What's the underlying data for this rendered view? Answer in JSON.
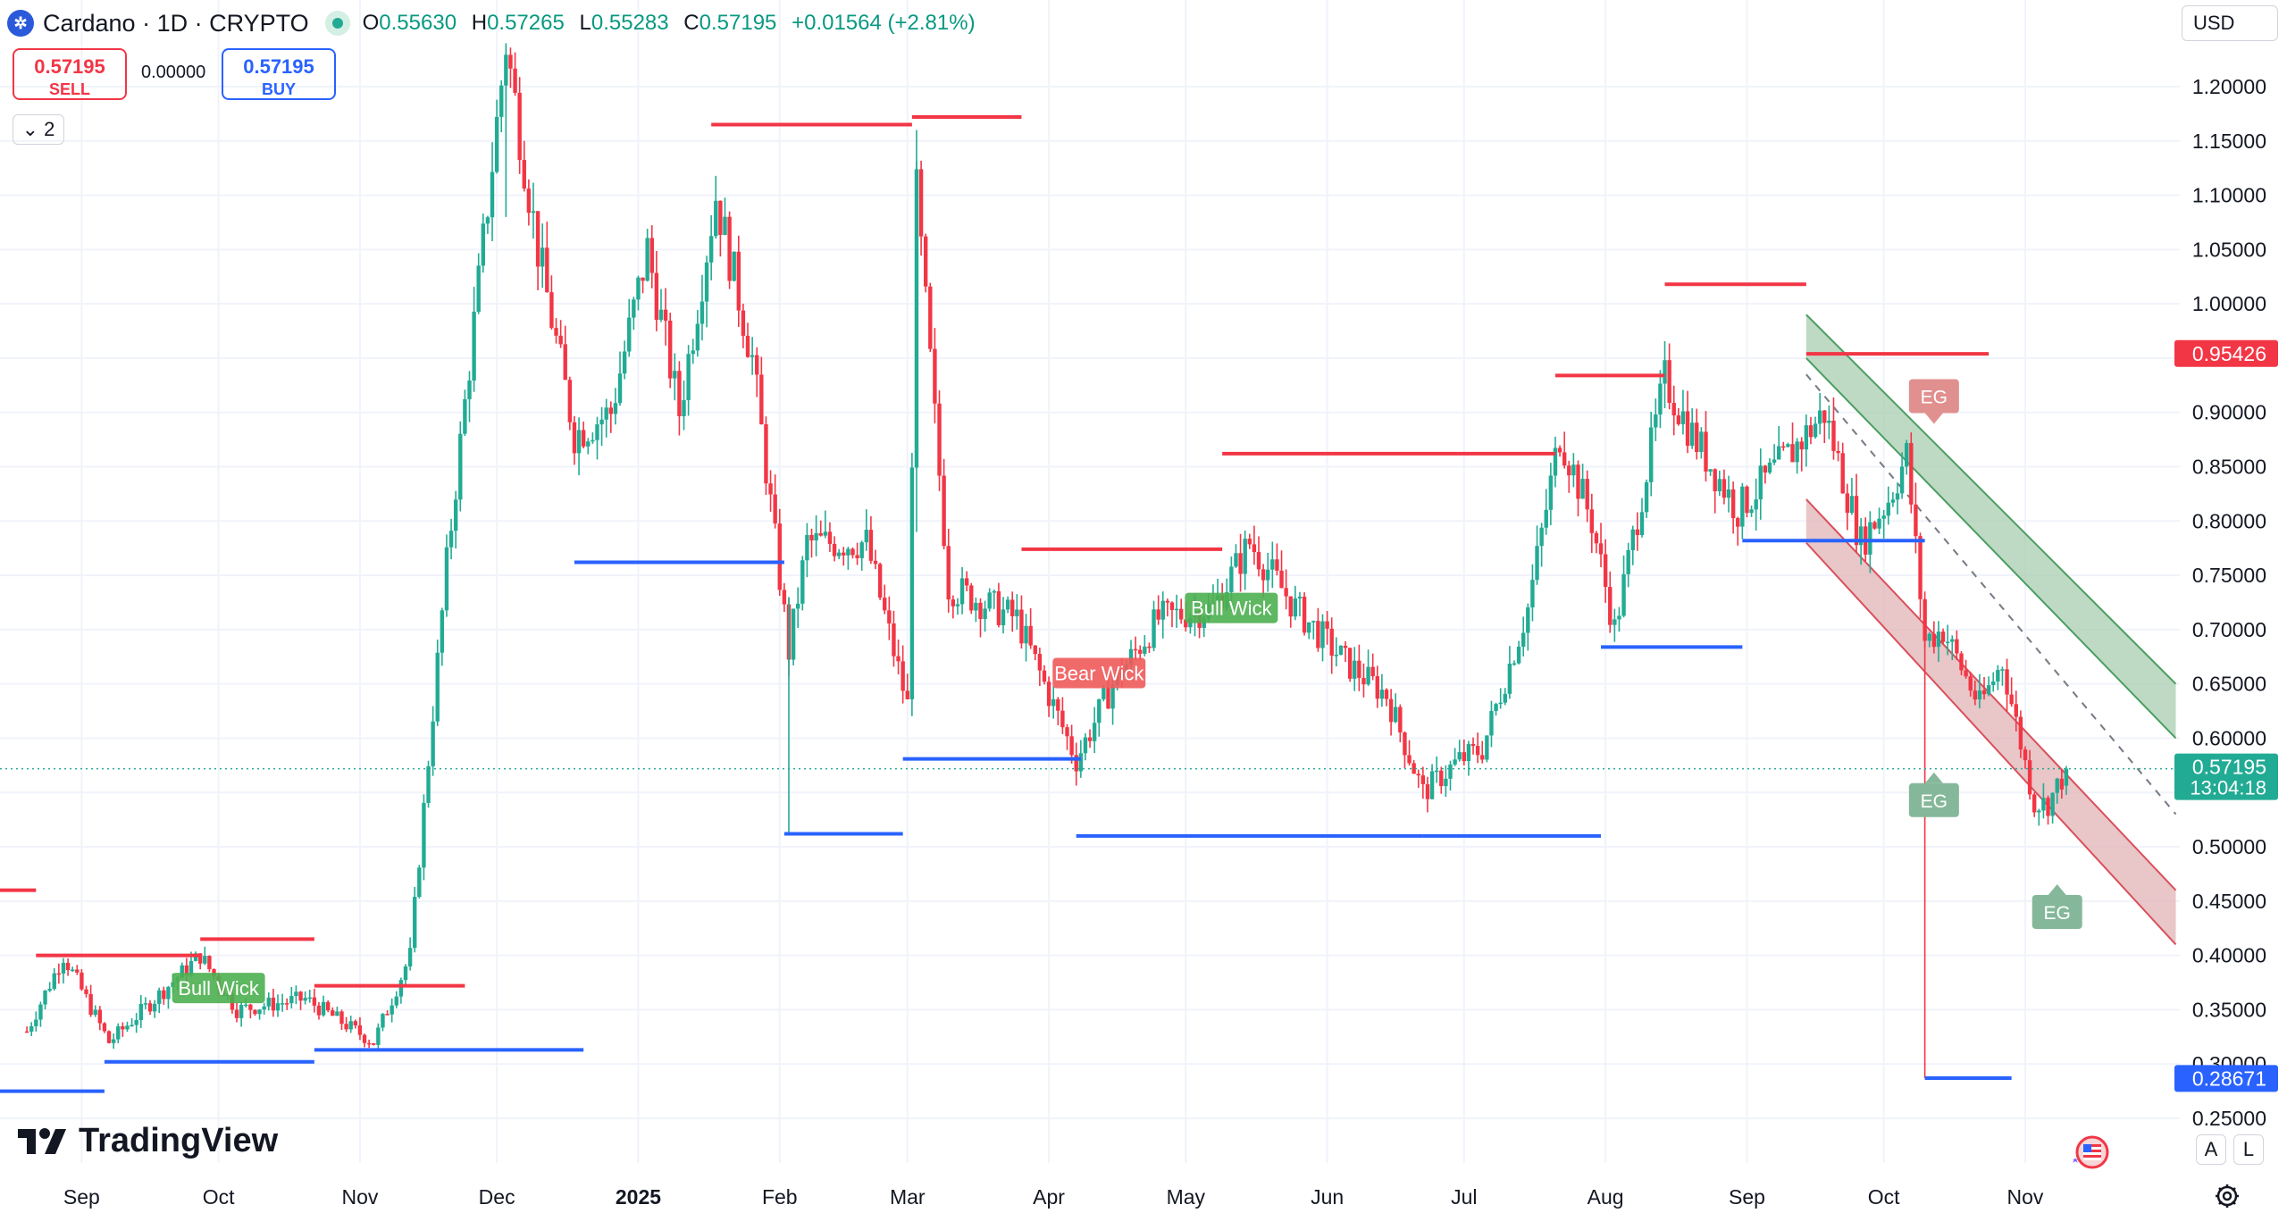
{
  "header": {
    "symbol_icon": "cardano-coin-icon",
    "title": "Cardano · 1D · CRYPTO",
    "ohlc": {
      "o_label": "O",
      "o": "0.55630",
      "h_label": "H",
      "h": "0.57265",
      "l_label": "L",
      "l": "0.55283",
      "c_label": "C",
      "c": "0.57195",
      "change": "+0.01564 (+2.81%)"
    }
  },
  "trade": {
    "sell_price": "0.57195",
    "sell_label": "SELL",
    "spread": "0.00000",
    "buy_price": "0.57195",
    "buy_label": "BUY"
  },
  "indicator_toggle": "2",
  "currency": "USD",
  "brand": "TradingView",
  "bottom_buttons": {
    "a": "A",
    "l": "L"
  },
  "colors": {
    "up": "#22ab94",
    "down": "#f23645",
    "resistance": "#f23645",
    "support": "#2962ff",
    "grid": "#f0f3fa",
    "channel_green": "#a9cdb0",
    "channel_red": "#e2b3b6"
  },
  "chart_data": {
    "type": "candlestick",
    "symbol": "Cardano",
    "interval": "1D",
    "currency": "USD",
    "y_ticks": [
      "1.20000",
      "1.15000",
      "1.10000",
      "1.05000",
      "1.00000",
      "0.90000",
      "0.85000",
      "0.80000",
      "0.75000",
      "0.70000",
      "0.65000",
      "0.60000",
      "0.50000",
      "0.45000",
      "0.40000",
      "0.35000",
      "0.30000",
      "0.25000"
    ],
    "x_labels": [
      "Sep",
      "Oct",
      "Nov",
      "Dec",
      "2025",
      "Feb",
      "Mar",
      "Apr",
      "May",
      "Jun",
      "Jul",
      "Aug",
      "Sep",
      "Oct",
      "Nov"
    ],
    "price_labels": [
      {
        "value": "0.95426",
        "color": "#f23645"
      },
      {
        "value": "0.57195",
        "sub": "13:04:18",
        "color": "#22ab94"
      },
      {
        "value": "0.28671",
        "color": "#2962ff"
      }
    ],
    "current_price": 0.57195,
    "swing_path": [
      [
        "2024-08-20",
        0.33
      ],
      [
        "2024-08-28",
        0.4
      ],
      [
        "2024-09-07",
        0.32
      ],
      [
        "2024-09-22",
        0.38
      ],
      [
        "2024-09-27",
        0.4
      ],
      [
        "2024-10-05",
        0.35
      ],
      [
        "2024-10-20",
        0.36
      ],
      [
        "2024-11-04",
        0.32
      ],
      [
        "2024-11-12",
        0.4
      ],
      [
        "2024-11-20",
        0.76
      ],
      [
        "2024-12-03",
        1.24
      ],
      [
        "2024-12-10",
        1.05
      ],
      [
        "2024-12-18",
        0.88
      ],
      [
        "2024-12-26",
        0.9
      ],
      [
        "2025-01-03",
        1.05
      ],
      [
        "2025-01-10",
        0.9
      ],
      [
        "2025-01-18",
        1.1
      ],
      [
        "2025-01-26",
        0.95
      ],
      [
        "2025-02-03",
        0.68
      ],
      [
        "2025-02-07",
        0.78
      ],
      [
        "2025-02-20",
        0.78
      ],
      [
        "2025-03-01",
        0.63
      ],
      [
        "2025-03-03",
        1.1
      ],
      [
        "2025-03-10",
        0.74
      ],
      [
        "2025-03-25",
        0.71
      ],
      [
        "2025-04-07",
        0.58
      ],
      [
        "2025-04-15",
        0.65
      ],
      [
        "2025-04-25",
        0.71
      ],
      [
        "2025-05-07",
        0.72
      ],
      [
        "2025-05-15",
        0.78
      ],
      [
        "2025-05-25",
        0.72
      ],
      [
        "2025-06-05",
        0.67
      ],
      [
        "2025-06-14",
        0.64
      ],
      [
        "2025-06-22",
        0.55
      ],
      [
        "2025-06-30",
        0.58
      ],
      [
        "2025-07-05",
        0.59
      ],
      [
        "2025-07-15",
        0.72
      ],
      [
        "2025-07-22",
        0.88
      ],
      [
        "2025-07-29",
        0.8
      ],
      [
        "2025-08-03",
        0.7
      ],
      [
        "2025-08-14",
        0.93
      ],
      [
        "2025-08-20",
        0.88
      ],
      [
        "2025-08-30",
        0.81
      ],
      [
        "2025-09-10",
        0.86
      ],
      [
        "2025-09-18",
        0.9
      ],
      [
        "2025-09-26",
        0.78
      ],
      [
        "2025-10-02",
        0.82
      ],
      [
        "2025-10-06",
        0.86
      ],
      [
        "2025-10-10",
        0.69
      ],
      [
        "2025-10-14",
        0.7
      ],
      [
        "2025-10-22",
        0.63
      ],
      [
        "2025-10-27",
        0.67
      ],
      [
        "2025-11-03",
        0.54
      ],
      [
        "2025-11-06",
        0.54
      ],
      [
        "2025-11-10",
        0.57
      ]
    ],
    "resistance_lines": [
      {
        "start": "2024-08-13",
        "end": "2024-08-22",
        "price": 0.46
      },
      {
        "start": "2024-08-22",
        "end": "2024-09-27",
        "price": 0.4
      },
      {
        "start": "2024-09-27",
        "end": "2024-10-22",
        "price": 0.415
      },
      {
        "start": "2024-10-22",
        "end": "2024-11-24",
        "price": 0.372
      },
      {
        "start": "2025-01-17",
        "end": "2025-03-02",
        "price": 1.165
      },
      {
        "start": "2025-03-02",
        "end": "2025-03-26",
        "price": 1.172
      },
      {
        "start": "2025-03-26",
        "end": "2025-05-09",
        "price": 0.774
      },
      {
        "start": "2025-05-09",
        "end": "2025-07-21",
        "price": 0.862
      },
      {
        "start": "2025-07-21",
        "end": "2025-08-14",
        "price": 0.934
      },
      {
        "start": "2025-08-14",
        "end": "2025-09-14",
        "price": 1.018
      },
      {
        "start": "2025-09-14",
        "end": "2025-10-24",
        "price": 0.954
      }
    ],
    "support_lines": [
      {
        "start": "2024-08-13",
        "end": "2024-09-06",
        "price": 0.275
      },
      {
        "start": "2024-09-06",
        "end": "2024-10-22",
        "price": 0.302
      },
      {
        "start": "2024-10-22",
        "end": "2024-12-20",
        "price": 0.313
      },
      {
        "start": "2024-12-18",
        "end": "2025-02-02",
        "price": 0.762
      },
      {
        "start": "2025-02-02",
        "end": "2025-02-28",
        "price": 0.512
      },
      {
        "start": "2025-02-28",
        "end": "2025-04-08",
        "price": 0.581
      },
      {
        "start": "2025-04-07",
        "end": "2025-06-22",
        "price": 0.51
      },
      {
        "start": "2025-06-22",
        "end": "2025-07-31",
        "price": 0.51
      },
      {
        "start": "2025-07-31",
        "end": "2025-08-31",
        "price": 0.684
      },
      {
        "start": "2025-08-31",
        "end": "2025-10-10",
        "price": 0.782
      },
      {
        "start": "2025-10-10",
        "end": "2025-10-29",
        "price": 0.287
      }
    ],
    "channels": [
      {
        "name": "green",
        "start": "2025-09-14",
        "end": "2025-12-04",
        "upper": [
          0.99,
          0.65
        ],
        "lower": [
          0.95,
          0.6
        ]
      },
      {
        "name": "red",
        "start": "2025-09-14",
        "end": "2025-12-04",
        "upper": [
          0.82,
          0.46
        ],
        "lower": [
          0.78,
          0.41
        ]
      }
    ],
    "dashed_trend": {
      "start": "2025-09-14",
      "end": "2025-12-04",
      "from": 0.935,
      "to": 0.53
    },
    "wick_labels": [
      {
        "text": "Bull Wick",
        "date": "2024-10-01",
        "price": 0.37,
        "color": "#4caf50"
      },
      {
        "text": "Bear Wick",
        "date": "2025-04-12",
        "price": 0.66,
        "color": "#f05a5a"
      },
      {
        "text": "Bull Wick",
        "date": "2025-05-11",
        "price": 0.72,
        "color": "#4caf50"
      }
    ],
    "eg_labels": [
      {
        "text": "EG",
        "date": "2025-10-12",
        "price": 0.915,
        "color": "#e0908f",
        "pointer": "down"
      },
      {
        "text": "EG",
        "date": "2025-10-12",
        "price": 0.543,
        "color": "#85b89a",
        "pointer": "up"
      },
      {
        "text": "EG",
        "date": "2025-11-08",
        "price": 0.44,
        "color": "#85b89a",
        "pointer": "up"
      }
    ],
    "grid": true
  }
}
